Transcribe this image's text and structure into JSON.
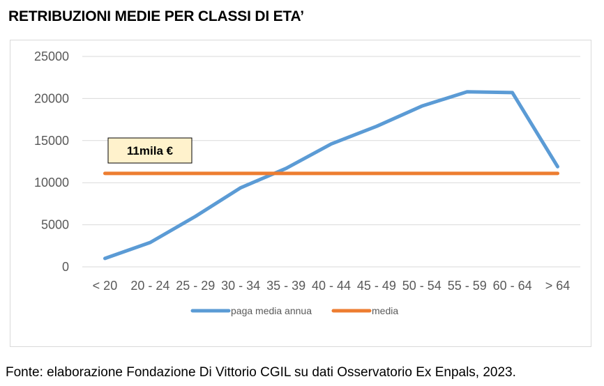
{
  "title": "RETRIBUZIONI MEDIE PER CLASSI DI ETA’",
  "source": "Fonte: elaborazione Fondazione Di Vittorio CGIL su dati Osservatorio Ex Enpals, 2023.",
  "chart_data": {
    "type": "line",
    "categories": [
      "< 20",
      "20 - 24",
      "25 - 29",
      "30 - 34",
      "35 - 39",
      "40 - 44",
      "45 - 49",
      "50 - 54",
      "55 - 59",
      "60 - 64",
      "> 64"
    ],
    "x_tick_labels": [
      "< 20",
      "20 - 24",
      "25 - 29",
      "30 - 34",
      "35 - 39",
      "40 - 44",
      "45 - 49",
      "50 - 54",
      "55 - 59",
      "60 - 64",
      "> 64"
    ],
    "y_tick_labels": [
      "0",
      "5000",
      "10000",
      "15000",
      "20000",
      "25000"
    ],
    "y_ticks": [
      0,
      5000,
      10000,
      15000,
      20000,
      25000
    ],
    "ylim": [
      0,
      25000
    ],
    "grid": true,
    "legend_position": "bottom",
    "series": [
      {
        "name": "paga media annua",
        "color": "#5b9bd5",
        "values": [
          1000,
          2900,
          6000,
          9400,
          11700,
          14600,
          16700,
          19100,
          20800,
          20700,
          11900
        ]
      },
      {
        "name": "media",
        "color": "#ed7d31",
        "values": [
          11100,
          11100,
          11100,
          11100,
          11100,
          11100,
          11100,
          11100,
          11100,
          11100,
          11100
        ]
      }
    ],
    "annotation": {
      "text": "11mila €",
      "fill": "#fff2cc"
    }
  }
}
